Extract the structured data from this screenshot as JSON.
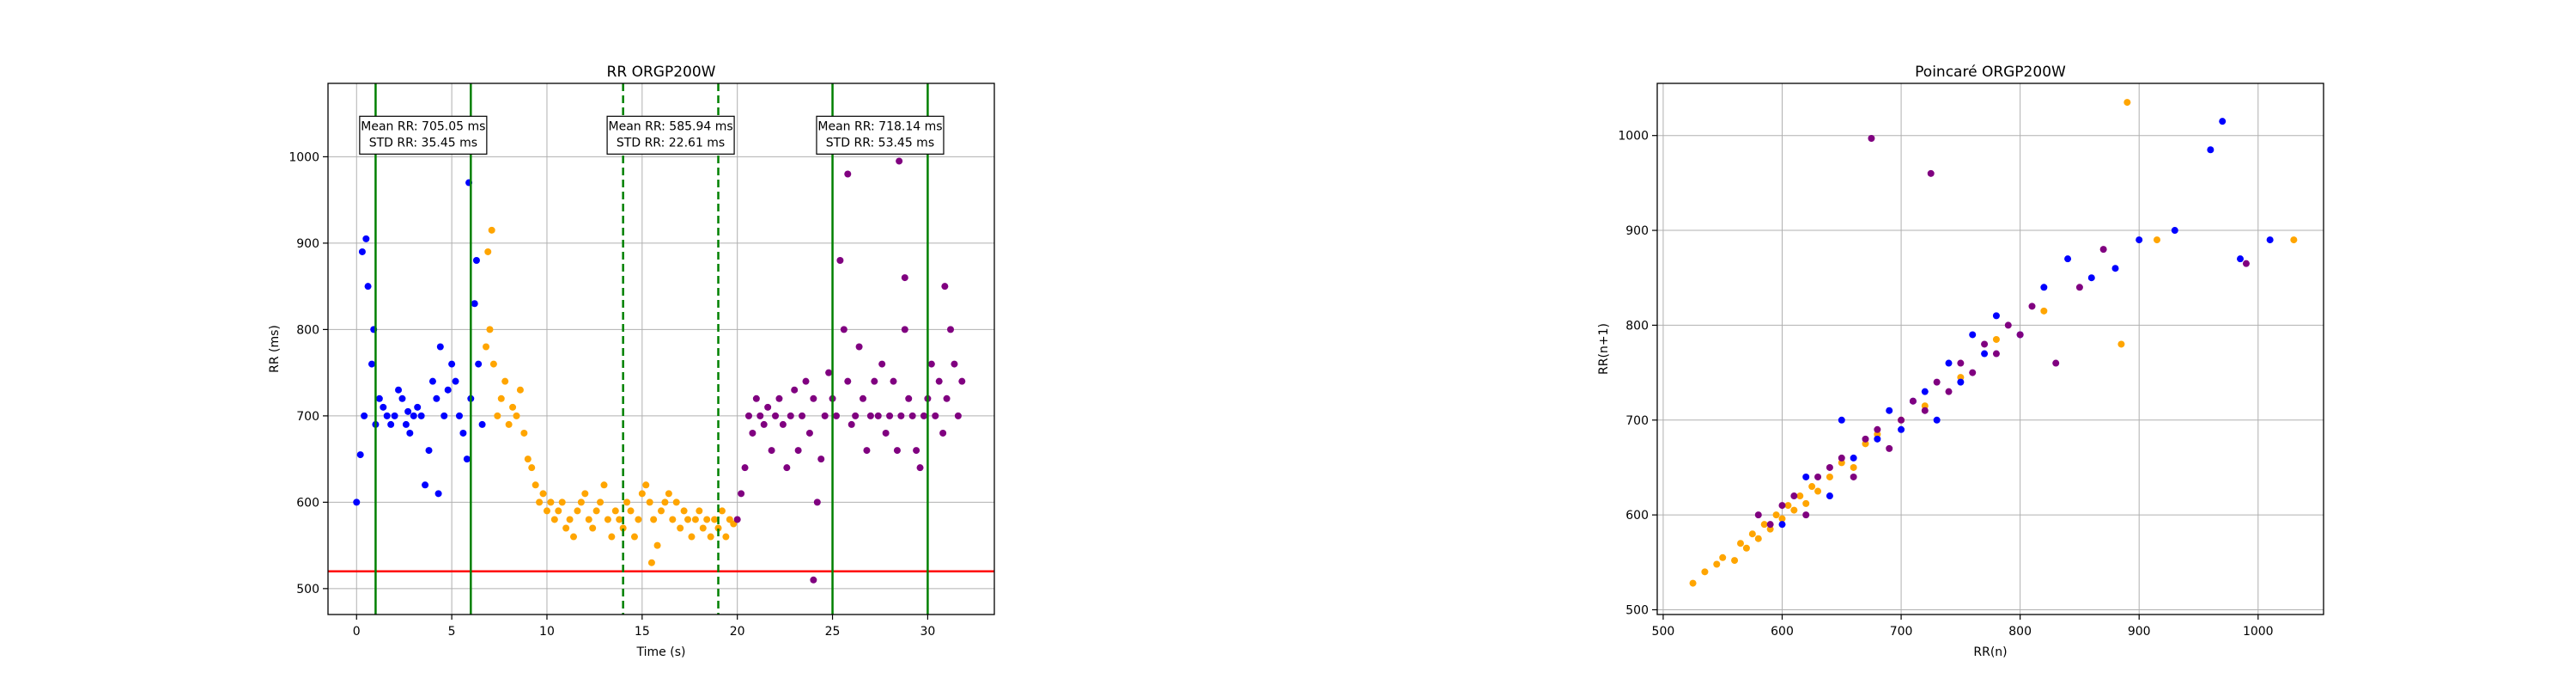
{
  "chart_data": [
    {
      "type": "scatter",
      "title": "RR ORGP200W",
      "xlabel": "Time (s)",
      "ylabel": "RR (ms)",
      "xlim": [
        -1.5,
        33.5
      ],
      "ylim": [
        470,
        1085
      ],
      "xticks": [
        0,
        5,
        10,
        15,
        20,
        25,
        30
      ],
      "yticks": [
        500,
        600,
        700,
        800,
        900,
        1000
      ],
      "grid": true,
      "threshold_line": {
        "y": 520,
        "color": "#ff0000"
      },
      "vlines": [
        {
          "x": 1,
          "style": "solid",
          "color": "#008000"
        },
        {
          "x": 6,
          "style": "solid",
          "color": "#008000"
        },
        {
          "x": 14,
          "style": "dashed",
          "color": "#008000"
        },
        {
          "x": 19,
          "style": "dashed",
          "color": "#008000"
        },
        {
          "x": 25,
          "style": "solid",
          "color": "#008000"
        },
        {
          "x": 30,
          "style": "solid",
          "color": "#008000"
        }
      ],
      "annotations": [
        {
          "x": 3.5,
          "y": 1025,
          "lines": [
            "Mean RR: 705.05 ms",
            "STD RR: 35.45 ms"
          ]
        },
        {
          "x": 16.5,
          "y": 1025,
          "lines": [
            "Mean RR: 585.94 ms",
            "STD RR: 22.61 ms"
          ]
        },
        {
          "x": 27.5,
          "y": 1025,
          "lines": [
            "Mean RR: 718.14 ms",
            "STD RR: 53.45 ms"
          ]
        }
      ],
      "series": [
        {
          "color": "#0000ff",
          "x": [
            0.0,
            0.2,
            0.4,
            0.6,
            0.8,
            1.0,
            1.2,
            1.4,
            1.6,
            1.8,
            2.0,
            2.2,
            2.4,
            2.6,
            2.8,
            3.0,
            3.2,
            3.4,
            3.6,
            3.8,
            4.0,
            4.2,
            4.4,
            4.6,
            4.8,
            5.0,
            5.2,
            5.4,
            5.6,
            5.8,
            6.0,
            6.2,
            6.4,
            6.6,
            0.3,
            0.5,
            0.9,
            2.7,
            4.3,
            5.9,
            6.3
          ],
          "y": [
            600,
            655,
            700,
            850,
            760,
            690,
            720,
            710,
            700,
            690,
            700,
            730,
            720,
            690,
            680,
            700,
            710,
            700,
            620,
            660,
            740,
            720,
            780,
            700,
            730,
            760,
            740,
            700,
            680,
            650,
            720,
            830,
            760,
            690,
            890,
            905,
            800,
            705,
            610,
            970,
            880
          ]
        },
        {
          "color": "#ffa500",
          "x": [
            6.8,
            7.0,
            7.2,
            7.4,
            7.6,
            7.8,
            8.0,
            8.2,
            8.4,
            8.6,
            8.8,
            9.0,
            9.2,
            9.4,
            9.6,
            9.8,
            10.0,
            10.2,
            10.4,
            10.6,
            10.8,
            11.0,
            11.2,
            11.4,
            11.6,
            11.8,
            12.0,
            12.2,
            12.4,
            12.6,
            12.8,
            13.0,
            13.2,
            13.4,
            13.6,
            13.8,
            14.0,
            14.2,
            14.4,
            14.6,
            14.8,
            15.0,
            15.2,
            15.4,
            15.6,
            15.8,
            16.0,
            16.2,
            16.4,
            16.6,
            16.8,
            17.0,
            17.2,
            17.4,
            17.6,
            17.8,
            18.0,
            18.2,
            18.4,
            18.6,
            18.8,
            19.0,
            19.2,
            19.4,
            19.6,
            19.8,
            6.9,
            7.1,
            15.5
          ],
          "y": [
            780,
            800,
            760,
            700,
            720,
            740,
            690,
            710,
            700,
            730,
            680,
            650,
            640,
            620,
            600,
            610,
            590,
            600,
            580,
            590,
            600,
            570,
            580,
            560,
            590,
            600,
            610,
            580,
            570,
            590,
            600,
            620,
            580,
            560,
            590,
            580,
            570,
            600,
            590,
            560,
            580,
            610,
            620,
            600,
            580,
            550,
            590,
            600,
            610,
            580,
            600,
            570,
            590,
            580,
            560,
            580,
            590,
            570,
            580,
            560,
            580,
            570,
            590,
            560,
            580,
            575,
            890,
            915,
            530
          ]
        },
        {
          "color": "#800080",
          "x": [
            20.0,
            20.2,
            20.4,
            20.6,
            20.8,
            21.0,
            21.2,
            21.4,
            21.6,
            21.8,
            22.0,
            22.2,
            22.4,
            22.6,
            22.8,
            23.0,
            23.2,
            23.4,
            23.6,
            23.8,
            24.0,
            24.2,
            24.4,
            24.6,
            24.8,
            25.0,
            25.2,
            25.4,
            25.6,
            25.8,
            26.0,
            26.2,
            26.4,
            26.6,
            26.8,
            27.0,
            27.2,
            27.4,
            27.6,
            27.8,
            28.0,
            28.2,
            28.4,
            28.6,
            28.8,
            29.0,
            29.2,
            29.4,
            29.6,
            29.8,
            30.0,
            30.2,
            30.4,
            30.6,
            30.8,
            31.0,
            31.2,
            31.4,
            31.6,
            31.8,
            24.0,
            25.8,
            28.5,
            28.8,
            30.9
          ],
          "y": [
            580,
            610,
            640,
            700,
            680,
            720,
            700,
            690,
            710,
            660,
            700,
            720,
            690,
            640,
            700,
            730,
            660,
            700,
            740,
            680,
            720,
            600,
            650,
            700,
            750,
            720,
            700,
            880,
            800,
            740,
            690,
            700,
            780,
            720,
            660,
            700,
            740,
            700,
            760,
            680,
            700,
            740,
            660,
            700,
            800,
            720,
            700,
            660,
            640,
            700,
            720,
            760,
            700,
            740,
            680,
            720,
            800,
            760,
            700,
            740,
            510,
            980,
            995,
            860,
            850
          ]
        }
      ]
    },
    {
      "type": "scatter",
      "title": "Poincaré ORGP200W",
      "xlabel": "RR(n)",
      "ylabel": "RR(n+1)",
      "xlim": [
        495,
        1055
      ],
      "ylim": [
        495,
        1055
      ],
      "xticks": [
        500,
        600,
        700,
        800,
        900,
        1000
      ],
      "yticks": [
        500,
        600,
        700,
        800,
        900,
        1000
      ],
      "grid": true,
      "series": [
        {
          "color": "#ffa500",
          "x": [
            525,
            535,
            545,
            550,
            560,
            565,
            570,
            575,
            580,
            585,
            590,
            595,
            600,
            605,
            610,
            615,
            620,
            625,
            630,
            640,
            650,
            660,
            670,
            680,
            700,
            720,
            750,
            780,
            820,
            885,
            890,
            915,
            1030
          ],
          "y": [
            528,
            540,
            548,
            555,
            552,
            570,
            565,
            580,
            575,
            590,
            585,
            600,
            596,
            610,
            605,
            620,
            612,
            630,
            625,
            640,
            655,
            650,
            675,
            685,
            700,
            715,
            745,
            785,
            815,
            780,
            1035,
            890,
            890
          ]
        },
        {
          "color": "#0000ff",
          "x": [
            600,
            620,
            640,
            650,
            660,
            680,
            690,
            700,
            710,
            720,
            730,
            740,
            750,
            760,
            770,
            780,
            800,
            820,
            840,
            860,
            880,
            900,
            930,
            960,
            970,
            985,
            1010
          ],
          "y": [
            590,
            640,
            620,
            700,
            660,
            680,
            710,
            690,
            720,
            730,
            700,
            760,
            740,
            790,
            770,
            810,
            790,
            840,
            870,
            850,
            860,
            890,
            900,
            985,
            1015,
            870,
            890
          ]
        },
        {
          "color": "#800080",
          "x": [
            580,
            590,
            600,
            610,
            620,
            630,
            640,
            650,
            660,
            670,
            680,
            690,
            700,
            710,
            720,
            730,
            740,
            750,
            760,
            770,
            780,
            790,
            800,
            810,
            830,
            850,
            870,
            675,
            725,
            990
          ],
          "y": [
            600,
            590,
            610,
            620,
            600,
            640,
            650,
            660,
            640,
            680,
            690,
            670,
            700,
            720,
            710,
            740,
            730,
            760,
            750,
            780,
            770,
            800,
            790,
            820,
            760,
            840,
            880,
            997,
            960,
            865
          ]
        }
      ]
    }
  ]
}
